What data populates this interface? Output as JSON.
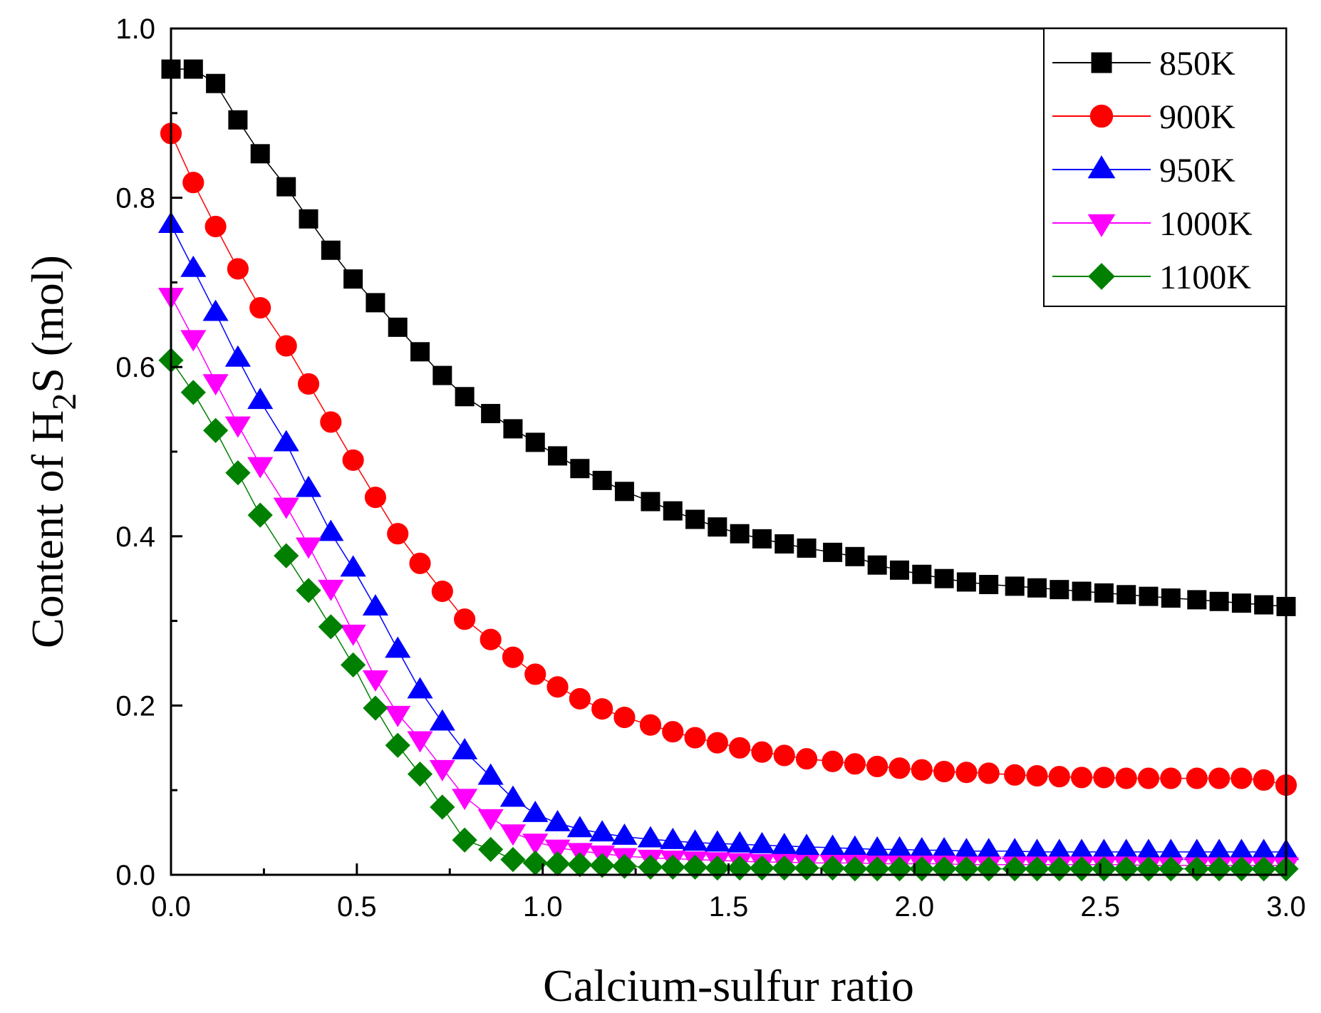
{
  "chart_data": {
    "type": "line",
    "title": "",
    "xlabel": "Calcium-sulfur ratio",
    "ylabel": {
      "prefix": "Content of H",
      "subscript": "2",
      "suffix": "S (mol)"
    },
    "xlim": [
      0,
      3
    ],
    "ylim": [
      0,
      1
    ],
    "xticks": [
      "0.0",
      "0.5",
      "1.0",
      "1.5",
      "2.0",
      "2.5",
      "3.0"
    ],
    "yticks": [
      "0.0",
      "0.2",
      "0.4",
      "0.6",
      "0.8",
      "1.0"
    ],
    "grid": false,
    "legend_position": "top-right",
    "x": [
      0.0,
      0.06,
      0.12,
      0.18,
      0.24,
      0.31,
      0.37,
      0.43,
      0.49,
      0.55,
      0.61,
      0.67,
      0.73,
      0.79,
      0.86,
      0.92,
      0.98,
      1.04,
      1.1,
      1.16,
      1.22,
      1.29,
      1.35,
      1.41,
      1.47,
      1.53,
      1.59,
      1.65,
      1.71,
      1.78,
      1.84,
      1.9,
      1.96,
      2.02,
      2.08,
      2.14,
      2.2,
      2.27,
      2.33,
      2.39,
      2.45,
      2.51,
      2.57,
      2.63,
      2.69,
      2.76,
      2.82,
      2.88,
      2.94,
      3.0
    ],
    "series": [
      {
        "name": "850K",
        "color": "#000000",
        "marker": "square",
        "values": [
          0.952,
          0.952,
          0.935,
          0.892,
          0.852,
          0.813,
          0.775,
          0.738,
          0.704,
          0.676,
          0.647,
          0.618,
          0.59,
          0.565,
          0.545,
          0.527,
          0.511,
          0.495,
          0.48,
          0.466,
          0.453,
          0.441,
          0.43,
          0.42,
          0.411,
          0.403,
          0.397,
          0.391,
          0.386,
          0.381,
          0.376,
          0.366,
          0.36,
          0.355,
          0.35,
          0.346,
          0.343,
          0.341,
          0.339,
          0.337,
          0.335,
          0.333,
          0.331,
          0.329,
          0.327,
          0.325,
          0.323,
          0.321,
          0.319,
          0.317
        ]
      },
      {
        "name": "900K",
        "color": "#ff0000",
        "marker": "circle",
        "values": [
          0.876,
          0.818,
          0.766,
          0.716,
          0.67,
          0.625,
          0.58,
          0.535,
          0.49,
          0.446,
          0.403,
          0.368,
          0.335,
          0.302,
          0.278,
          0.257,
          0.237,
          0.222,
          0.208,
          0.196,
          0.186,
          0.177,
          0.169,
          0.162,
          0.156,
          0.15,
          0.145,
          0.141,
          0.137,
          0.134,
          0.131,
          0.128,
          0.126,
          0.124,
          0.122,
          0.121,
          0.12,
          0.118,
          0.117,
          0.116,
          0.115,
          0.115,
          0.114,
          0.114,
          0.114,
          0.114,
          0.114,
          0.114,
          0.112,
          0.106
        ]
      },
      {
        "name": "950K",
        "color": "#0000ff",
        "marker": "triangle-up",
        "values": [
          0.768,
          0.716,
          0.664,
          0.61,
          0.56,
          0.51,
          0.456,
          0.404,
          0.362,
          0.316,
          0.266,
          0.218,
          0.18,
          0.146,
          0.116,
          0.09,
          0.072,
          0.061,
          0.054,
          0.049,
          0.045,
          0.042,
          0.04,
          0.038,
          0.037,
          0.036,
          0.035,
          0.034,
          0.033,
          0.032,
          0.031,
          0.03,
          0.03,
          0.029,
          0.029,
          0.028,
          0.028,
          0.028,
          0.027,
          0.027,
          0.027,
          0.027,
          0.027,
          0.027,
          0.027,
          0.027,
          0.027,
          0.027,
          0.027,
          0.027
        ]
      },
      {
        "name": "1000K",
        "color": "#ff00ff",
        "marker": "triangle-down",
        "values": [
          0.684,
          0.634,
          0.582,
          0.532,
          0.484,
          0.436,
          0.389,
          0.339,
          0.286,
          0.232,
          0.19,
          0.16,
          0.126,
          0.092,
          0.068,
          0.05,
          0.039,
          0.032,
          0.028,
          0.025,
          0.022,
          0.02,
          0.019,
          0.018,
          0.017,
          0.016,
          0.015,
          0.015,
          0.014,
          0.014,
          0.014,
          0.013,
          0.013,
          0.013,
          0.013,
          0.012,
          0.012,
          0.012,
          0.012,
          0.012,
          0.012,
          0.012,
          0.012,
          0.011,
          0.011,
          0.011,
          0.011,
          0.011,
          0.011,
          0.011
        ]
      },
      {
        "name": "1100K",
        "color": "#008000",
        "marker": "diamond",
        "values": [
          0.608,
          0.57,
          0.525,
          0.475,
          0.425,
          0.377,
          0.336,
          0.293,
          0.248,
          0.197,
          0.153,
          0.119,
          0.08,
          0.041,
          0.03,
          0.018,
          0.014,
          0.013,
          0.012,
          0.011,
          0.01,
          0.009,
          0.009,
          0.009,
          0.008,
          0.008,
          0.008,
          0.008,
          0.008,
          0.008,
          0.007,
          0.007,
          0.007,
          0.007,
          0.007,
          0.007,
          0.007,
          0.007,
          0.007,
          0.007,
          0.007,
          0.007,
          0.007,
          0.007,
          0.007,
          0.007,
          0.007,
          0.007,
          0.007,
          0.007
        ]
      }
    ]
  }
}
